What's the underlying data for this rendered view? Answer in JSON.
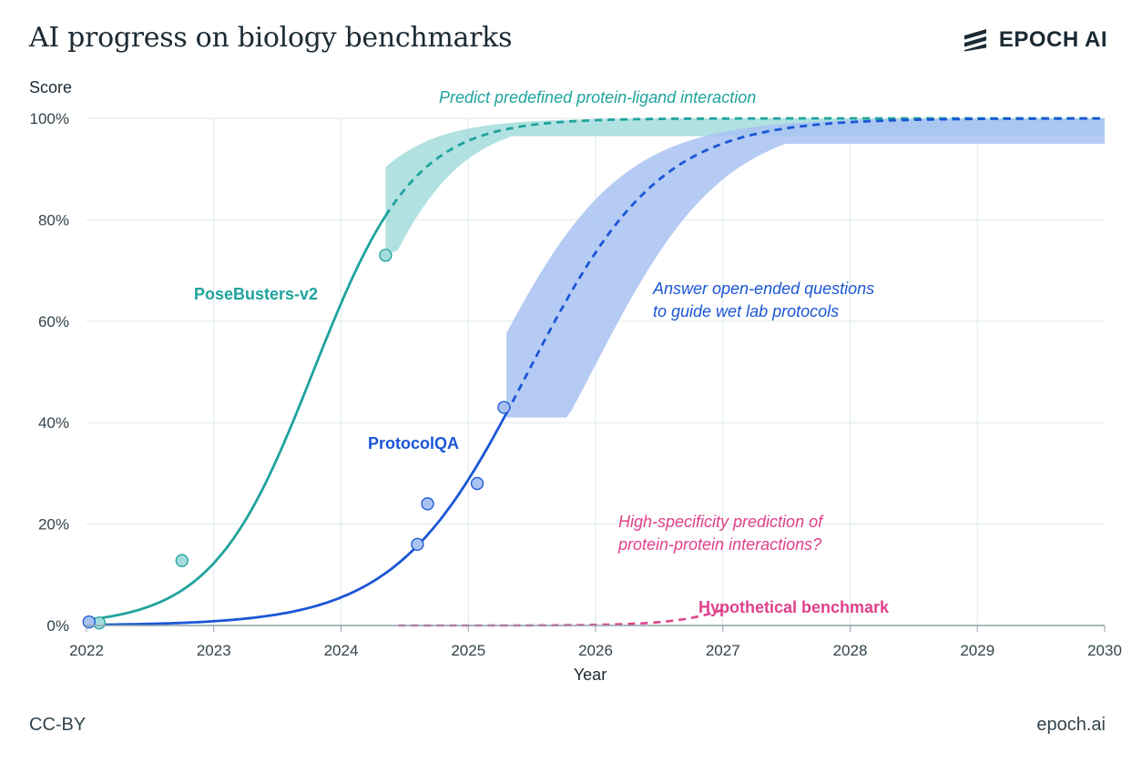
{
  "header": {
    "title": "AI progress on biology benchmarks",
    "brand": "EPOCH AI",
    "brand_icon": "epoch-logo-icon"
  },
  "footer": {
    "license": "CC-BY",
    "site": "epoch.ai"
  },
  "colors": {
    "posebusters": "#1fa39d",
    "posebusters_band": "#a3dcdc",
    "protocolqa": "#1a56d6",
    "protocolqa_band": "#a8c2f2",
    "hypothetical": "#e0408a",
    "grid": "#dde9e9",
    "axis": "#8fa3aa",
    "text": "#1b2a33"
  },
  "chart_data": {
    "type": "line",
    "title": "AI progress on biology benchmarks",
    "xlabel": "Year",
    "ylabel": "Score",
    "xlim": [
      2022,
      2030
    ],
    "ylim": [
      0,
      100
    ],
    "xticks": [
      2022,
      2023,
      2024,
      2025,
      2026,
      2027,
      2028,
      2029,
      2030
    ],
    "xtick_labels": [
      "2022",
      "2023",
      "2024",
      "2025",
      "2026",
      "2027",
      "2028",
      "2029",
      "2030"
    ],
    "yticks": [
      0,
      20,
      40,
      60,
      80,
      100
    ],
    "ytick_labels": [
      "0%",
      "20%",
      "40%",
      "60%",
      "80%",
      "100%"
    ],
    "grid": true,
    "series": [
      {
        "name": "PoseBusters-v2",
        "label": "PoseBusters-v2",
        "annotation": "Predict predefined protein-ligand interaction",
        "fit_start": 2022.0,
        "fit_end": 2024.35,
        "forecast_end": 2030,
        "midpoint": 2023.78,
        "rate": 2.52,
        "band_upper_shift": 0.32,
        "band_lower_shift": -0.25,
        "band_lower_floor": 73.5,
        "band_lower_cap": 96.5,
        "points": [
          {
            "x": 2022.1,
            "y": 0.5
          },
          {
            "x": 2022.75,
            "y": 12.8
          },
          {
            "x": 2024.35,
            "y": 73
          }
        ]
      },
      {
        "name": "ProtocolQA",
        "label": "ProtocolQA",
        "annotation": "Answer open-ended questions to guide wet lab protocols",
        "annotation_lines": [
          "Answer open-ended questions",
          "to guide wet lab protocols"
        ],
        "fit_start": 2022.0,
        "fit_end": 2025.3,
        "forecast_end": 2030,
        "midpoint": 2025.47,
        "rate": 1.93,
        "band_upper_shift": 0.33,
        "band_lower_shift": -0.5,
        "band_lower_floor": 41,
        "band_lower_cap": 95,
        "points": [
          {
            "x": 2022.02,
            "y": 0.7
          },
          {
            "x": 2024.6,
            "y": 16
          },
          {
            "x": 2024.68,
            "y": 24
          },
          {
            "x": 2025.07,
            "y": 28
          },
          {
            "x": 2025.28,
            "y": 43
          }
        ]
      },
      {
        "name": "Hypothetical benchmark",
        "label": "Hypothetical benchmark",
        "annotation": "High-specificity prediction of protein-protein interactions?",
        "annotation_lines": [
          "High-specificity prediction of",
          "protein-protein interactions?"
        ],
        "start": 2024.45,
        "end": 2027.02,
        "midpoint": 2027.6,
        "rate": 3.3,
        "scale": 20
      }
    ]
  }
}
